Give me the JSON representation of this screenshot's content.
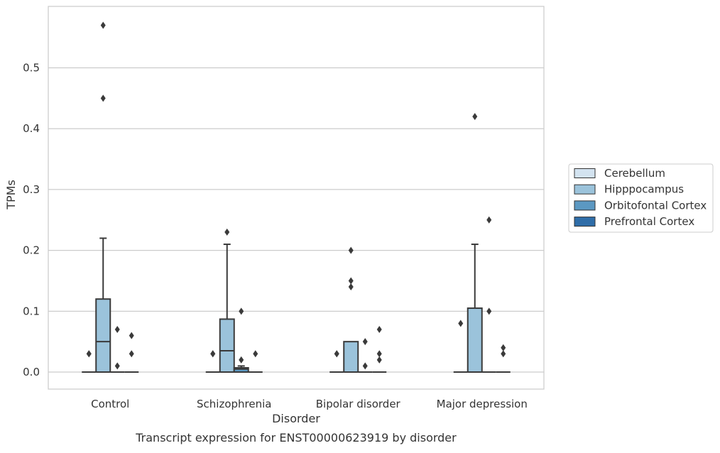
{
  "chart_data": {
    "type": "box",
    "xlabel": "Disorder",
    "ylabel": "TPMs",
    "caption": "Transcript expression for ENST00000623919 by disorder",
    "ylim": [
      -0.028,
      0.601
    ],
    "yticks": [
      "0.0",
      "0.1",
      "0.2",
      "0.3",
      "0.4",
      "0.5"
    ],
    "yticks_values": [
      0.0,
      0.1,
      0.2,
      0.3,
      0.4,
      0.5
    ],
    "grid": "horizontal",
    "legend_position": "right",
    "categories": [
      "Control",
      "Schizophrenia",
      "Bipolar disorder",
      "Major depression"
    ],
    "series": [
      {
        "name": "Cerebellum",
        "color": "#d3e3f0",
        "boxes": [
          {
            "q1": 0,
            "median": 0,
            "q3": 0,
            "whisker_low": 0,
            "whisker_high": 0,
            "outliers": [
              0.03,
              0.03
            ]
          },
          {
            "q1": 0,
            "median": 0,
            "q3": 0,
            "whisker_low": 0,
            "whisker_high": 0,
            "outliers": [
              0.03,
              0.03
            ]
          },
          {
            "q1": 0,
            "median": 0,
            "q3": 0,
            "whisker_low": 0,
            "whisker_high": 0,
            "outliers": [
              0.03,
              0.03
            ]
          },
          {
            "q1": 0,
            "median": 0,
            "q3": 0,
            "whisker_low": 0,
            "whisker_high": 0,
            "outliers": [
              0.08
            ]
          }
        ]
      },
      {
        "name": "Hipppocampus",
        "color": "#9bc3db",
        "boxes": [
          {
            "q1": 0,
            "median": 0.05,
            "q3": 0.12,
            "whisker_low": 0,
            "whisker_high": 0.22,
            "outliers": [
              0.45,
              0.57
            ]
          },
          {
            "q1": 0,
            "median": 0.035,
            "q3": 0.087,
            "whisker_low": 0,
            "whisker_high": 0.21,
            "outliers": [
              0.23
            ]
          },
          {
            "q1": 0,
            "median": 0,
            "q3": 0.05,
            "whisker_low": 0,
            "whisker_high": 0.05,
            "outliers": [
              0.14,
              0.15,
              0.2
            ]
          },
          {
            "q1": 0,
            "median": 0,
            "q3": 0.105,
            "whisker_low": 0,
            "whisker_high": 0.21,
            "outliers": [
              0.42
            ]
          }
        ]
      },
      {
        "name": "Orbitofontal Cortex",
        "color": "#5b98c2",
        "boxes": [
          {
            "q1": 0,
            "median": 0,
            "q3": 0,
            "whisker_low": 0,
            "whisker_high": 0,
            "outliers": [
              0.01,
              0.07
            ]
          },
          {
            "q1": 0,
            "median": 0.005,
            "q3": 0.007,
            "whisker_low": 0,
            "whisker_high": 0.01,
            "outliers": [
              0.02,
              0.1
            ]
          },
          {
            "q1": 0,
            "median": 0,
            "q3": 0,
            "whisker_low": 0,
            "whisker_high": 0,
            "outliers": [
              0.01,
              0.05
            ]
          },
          {
            "q1": 0,
            "median": 0,
            "q3": 0,
            "whisker_low": 0,
            "whisker_high": 0,
            "outliers": [
              0.1,
              0.25
            ]
          }
        ]
      },
      {
        "name": "Prefrontal Cortex",
        "color": "#2f6da8",
        "boxes": [
          {
            "q1": 0,
            "median": 0,
            "q3": 0,
            "whisker_low": 0,
            "whisker_high": 0,
            "outliers": [
              0.03,
              0.06
            ]
          },
          {
            "q1": 0,
            "median": 0,
            "q3": 0,
            "whisker_low": 0,
            "whisker_high": 0,
            "outliers": [
              0.03
            ]
          },
          {
            "q1": 0,
            "median": 0,
            "q3": 0,
            "whisker_low": 0,
            "whisker_high": 0,
            "outliers": [
              0.02,
              0.03,
              0.07
            ]
          },
          {
            "q1": 0,
            "median": 0,
            "q3": 0,
            "whisker_low": 0,
            "whisker_high": 0,
            "outliers": [
              0.03,
              0.04
            ]
          }
        ]
      }
    ]
  }
}
